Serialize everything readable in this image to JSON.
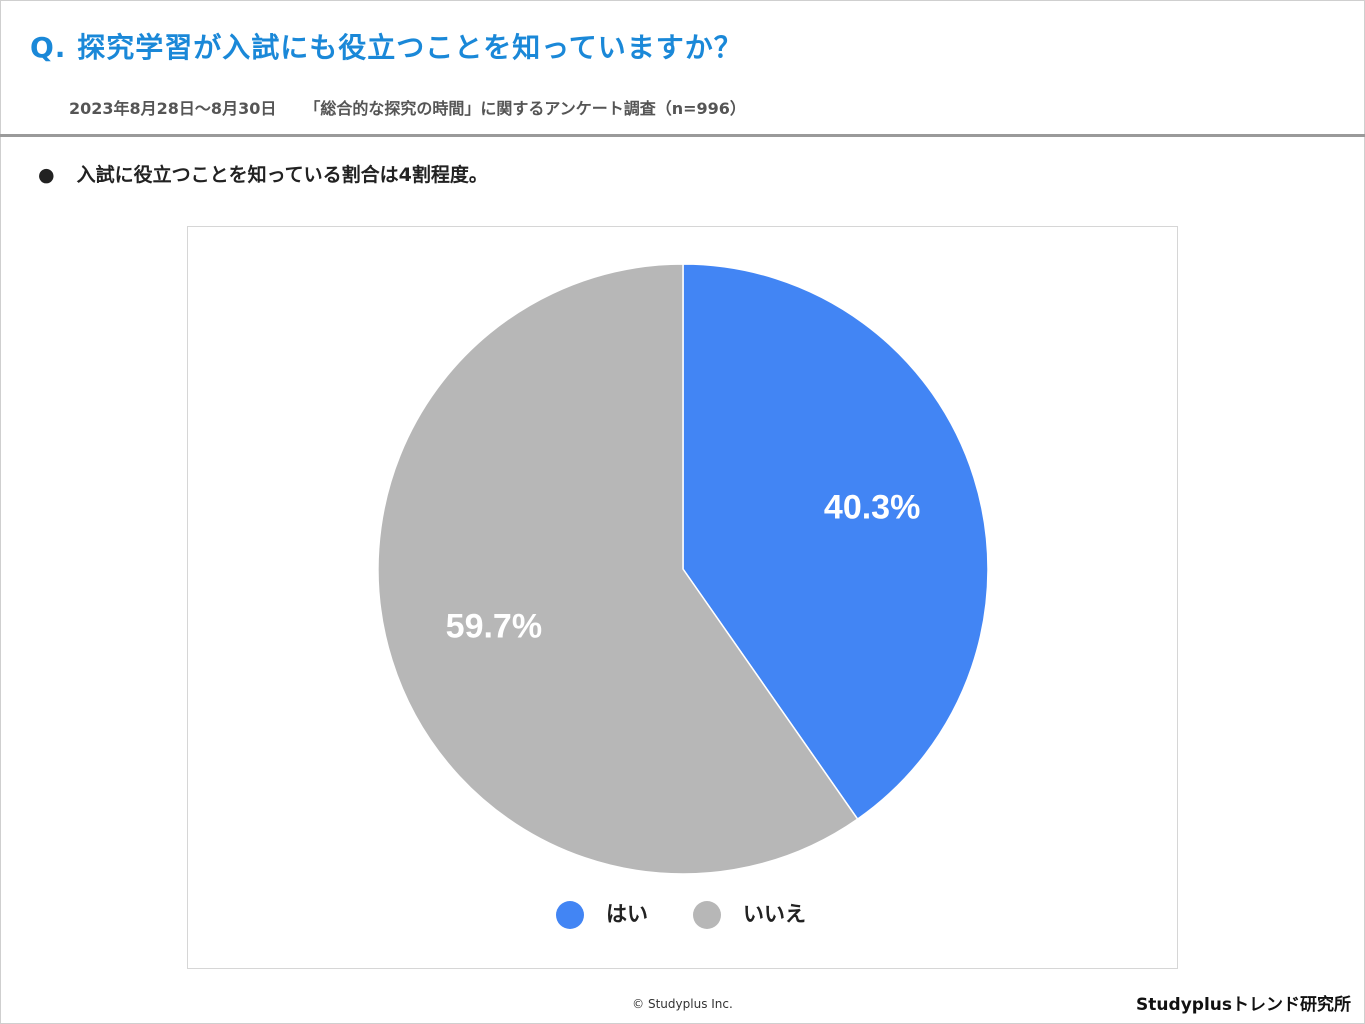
{
  "header": {
    "question": "Q. 探究学習が入試にも役立つことを知っていますか？",
    "date_range": "2023年8月28日〜8月30日",
    "survey_name": "「総合的な探究の時間」に関するアンケート調査（n=996）"
  },
  "summary": {
    "bullet": "●",
    "text": "入試に役立つことを知っている割合は4割程度。"
  },
  "chart_data": {
    "type": "pie",
    "categories": [
      "はい",
      "いいえ"
    ],
    "values": [
      40.3,
      59.7
    ],
    "labels": [
      "40.3%",
      "59.7%"
    ],
    "colors": [
      "#4285f4",
      "#b7b7b7"
    ],
    "legend_position": "bottom"
  },
  "footer": {
    "copyright": "© Studyplus Inc.",
    "brand": "Studyplusトレンド研究所"
  }
}
